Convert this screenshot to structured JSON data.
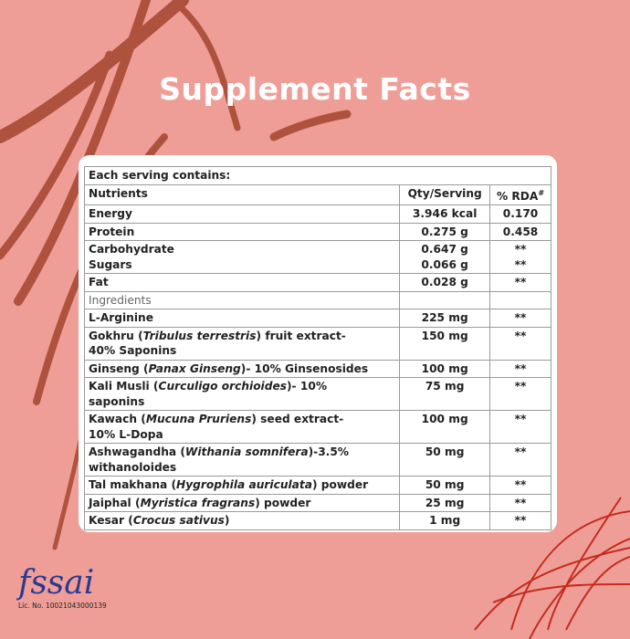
{
  "title": "Supplement Facts",
  "table": {
    "caption": "Each serving contains:",
    "header": {
      "name": "Nutrients",
      "qty": "Qty/Serving",
      "rda": "% RDA",
      "rda_mark": "#"
    },
    "rows": [
      {
        "name": [
          [
            "Energy"
          ]
        ],
        "qty": [
          "3.946 kcal"
        ],
        "rda": [
          "0.170"
        ]
      },
      {
        "name": [
          [
            "Protein"
          ]
        ],
        "qty": [
          "0.275 g"
        ],
        "rda": [
          "0.458"
        ]
      },
      {
        "name": [
          [
            "Carbohydrate"
          ],
          [
            "Sugars"
          ]
        ],
        "qty": [
          "0.647 g",
          "0.066 g"
        ],
        "rda": [
          "**",
          "**"
        ]
      },
      {
        "name": [
          [
            "Fat"
          ]
        ],
        "qty": [
          "0.028 g"
        ],
        "rda": [
          "**"
        ]
      },
      {
        "name": [
          [
            "Ingredients"
          ]
        ],
        "qty": [],
        "rda": []
      },
      {
        "name": [
          [
            "L-Arginine"
          ]
        ],
        "qty": [
          "225 mg"
        ],
        "rda": [
          "**"
        ]
      },
      {
        "name": [
          [
            "Gokhru (",
            {
              "text": "Tribulus terrestris",
              "italic": true
            },
            ") fruit extract-"
          ],
          [
            "40% Saponins"
          ]
        ],
        "qty": [
          "150 mg"
        ],
        "rda": [
          "**"
        ]
      },
      {
        "name": [
          [
            "Ginseng (",
            {
              "text": "Panax Ginseng",
              "italic": true
            },
            ")- 10% Ginsenosides"
          ]
        ],
        "qty": [
          "100 mg"
        ],
        "rda": [
          "**"
        ]
      },
      {
        "name": [
          [
            "Kali Musli (",
            {
              "text": "Curculigo orchioides",
              "italic": true
            },
            ")- 10%"
          ],
          [
            "saponins"
          ]
        ],
        "qty": [
          "75 mg"
        ],
        "rda": [
          "**"
        ]
      },
      {
        "name": [
          [
            "Kawach (",
            {
              "text": "Mucuna Pruriens",
              "italic": true
            },
            ") seed extract-"
          ],
          [
            "10% L-Dopa"
          ]
        ],
        "qty": [
          "100  mg"
        ],
        "rda": [
          "**"
        ]
      },
      {
        "name": [
          [
            "Ashwagandha (",
            {
              "text": "Withania somnifera",
              "italic": true
            },
            ")-3.5%"
          ],
          [
            "withanoloides"
          ]
        ],
        "qty": [
          "50 mg"
        ],
        "rda": [
          "**"
        ]
      },
      {
        "name": [
          [
            "Tal makhana (",
            {
              "text": "Hygrophila auriculata",
              "italic": true
            },
            ") powder"
          ]
        ],
        "qty": [
          "50 mg"
        ],
        "rda": [
          "**"
        ]
      },
      {
        "name": [
          [
            "Jaiphal (",
            {
              "text": "Myristica fragrans",
              "italic": true
            },
            ") powder"
          ]
        ],
        "qty": [
          "25 mg"
        ],
        "rda": [
          "**"
        ]
      },
      {
        "name": [
          [
            "Kesar (",
            {
              "text": "Crocus sativus",
              "italic": true
            },
            ")"
          ]
        ],
        "qty": [
          "1 mg"
        ],
        "rda": [
          "**"
        ]
      }
    ]
  },
  "logo": {
    "text": "fssai",
    "license": "Lic. No. 10021043000139"
  }
}
